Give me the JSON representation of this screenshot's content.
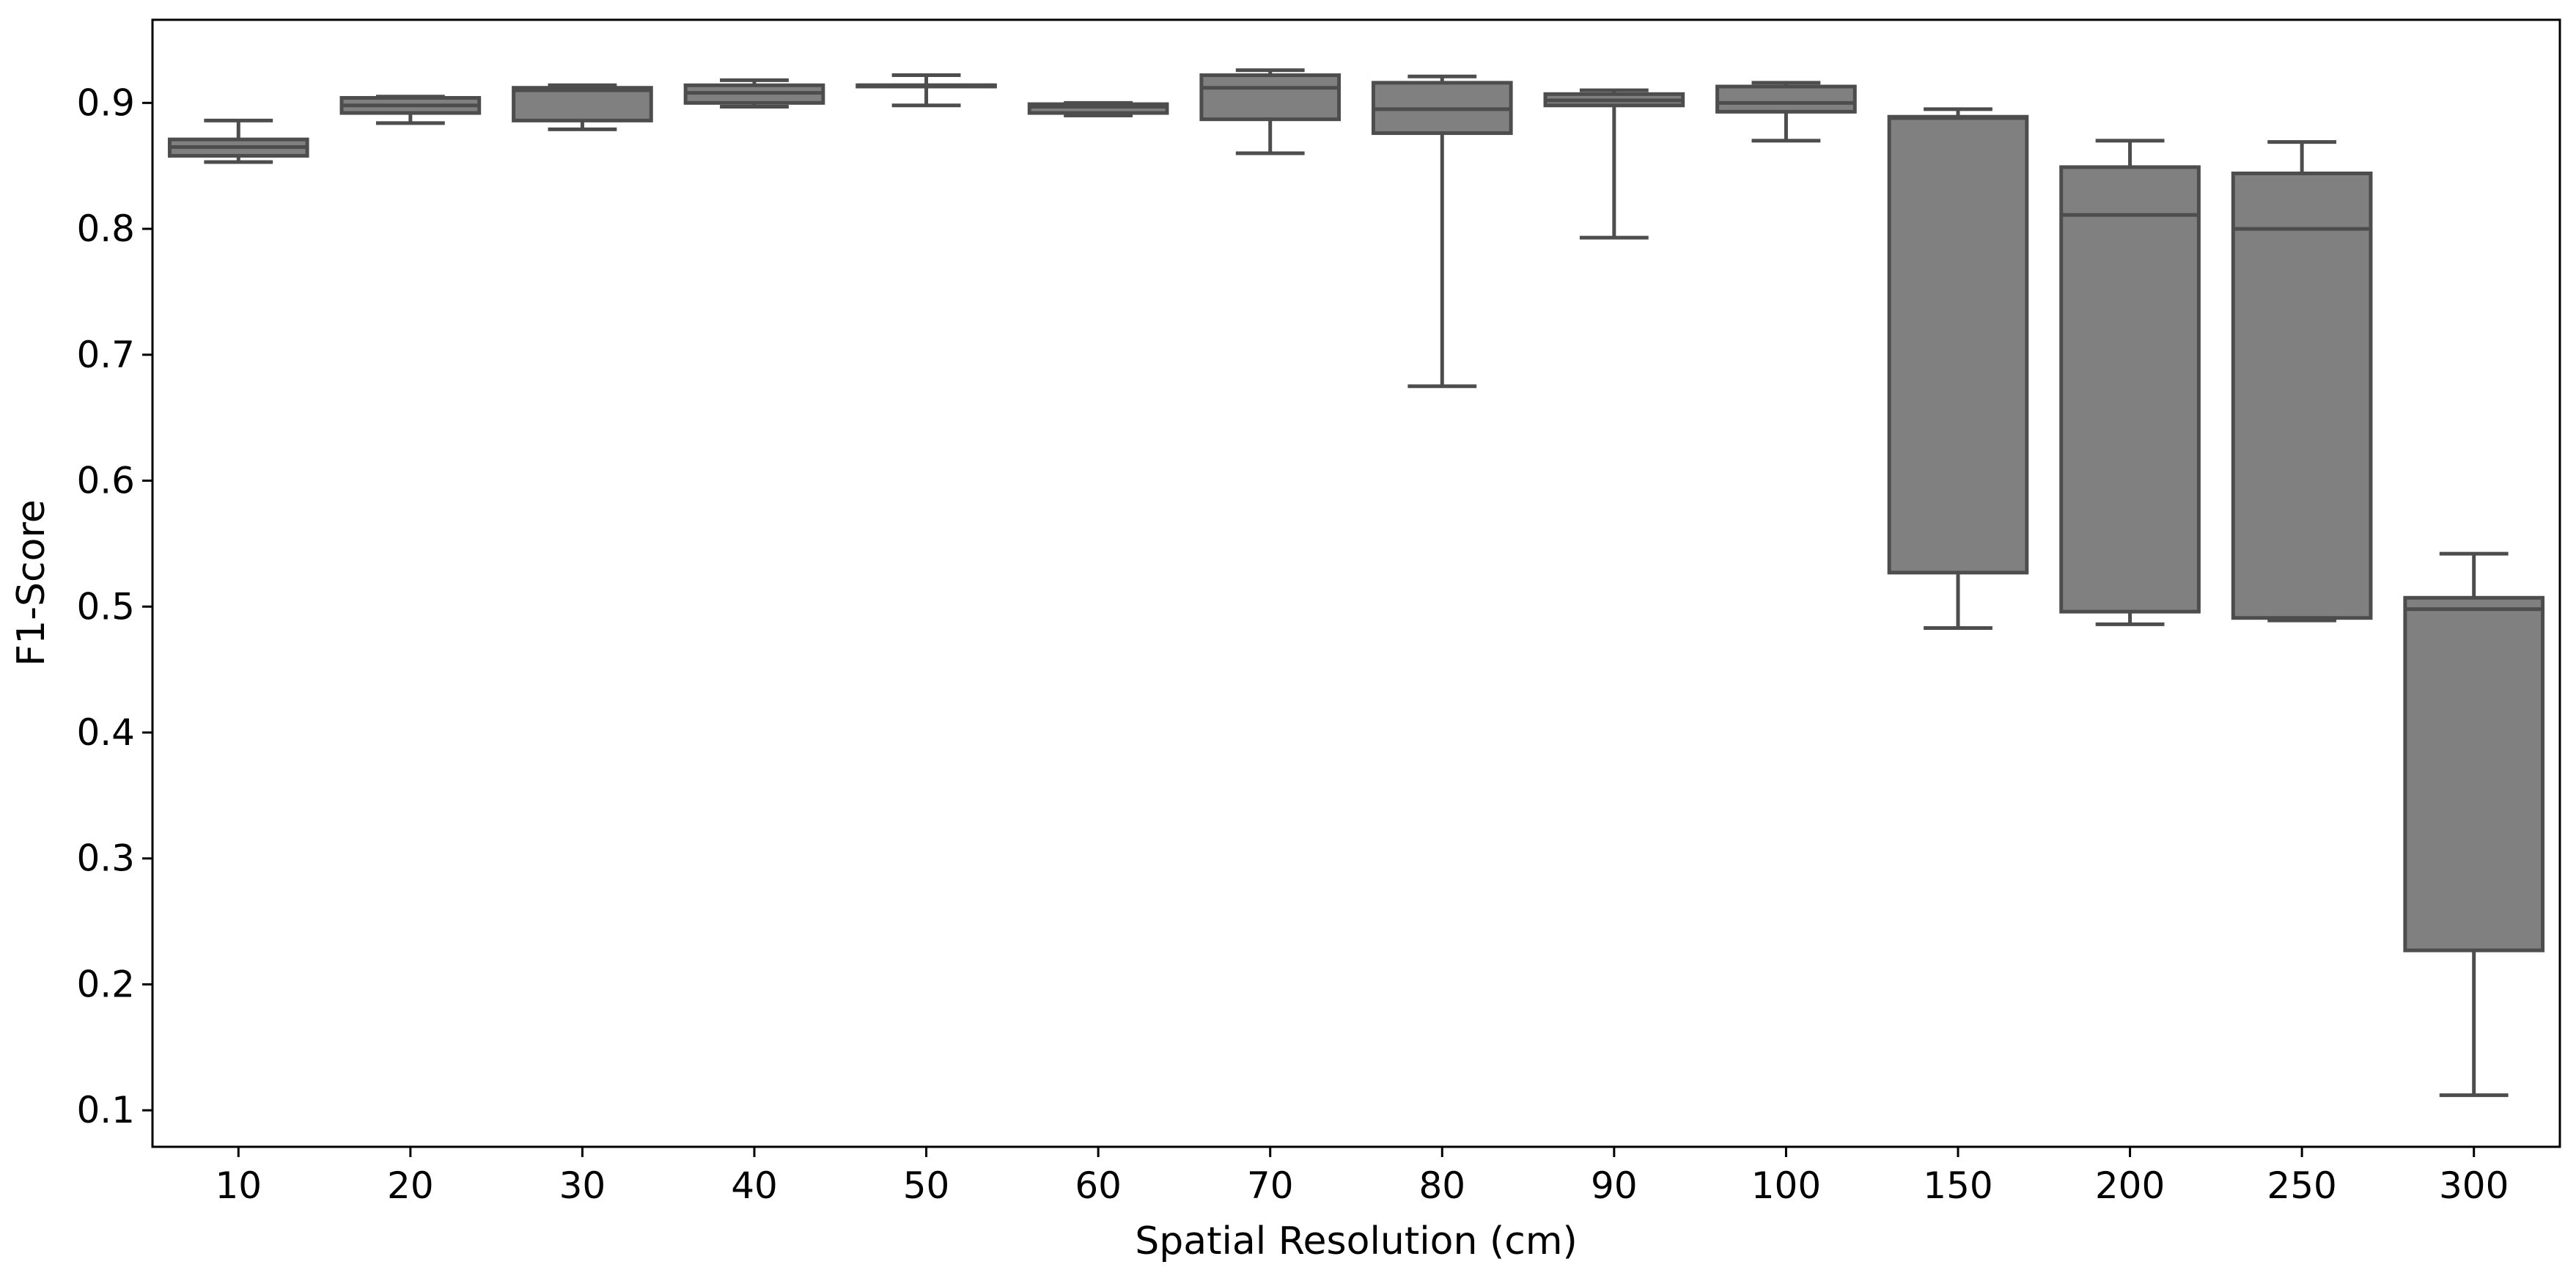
{
  "chart_data": {
    "type": "box",
    "title": "",
    "xlabel": "Spatial Resolution (cm)",
    "ylabel": "F1-Score",
    "categories": [
      "10",
      "20",
      "30",
      "40",
      "50",
      "60",
      "70",
      "80",
      "90",
      "100",
      "150",
      "200",
      "250",
      "300"
    ],
    "ylim": [
      0.071,
      0.966
    ],
    "yticks": [
      0.1,
      0.2,
      0.3,
      0.4,
      0.5,
      0.6,
      0.7,
      0.8,
      0.9
    ],
    "ytick_labels": [
      "0.1",
      "0.2",
      "0.3",
      "0.4",
      "0.5",
      "0.6",
      "0.7",
      "0.8",
      "0.9"
    ],
    "grid": false,
    "colors": {
      "box_fill": "#808080",
      "box_edge": "#4d4d4d"
    },
    "boxes": [
      {
        "whisker_low": 0.853,
        "q1": 0.858,
        "median": 0.865,
        "q3": 0.871,
        "whisker_high": 0.886
      },
      {
        "whisker_low": 0.884,
        "q1": 0.892,
        "median": 0.898,
        "q3": 0.904,
        "whisker_high": 0.905
      },
      {
        "whisker_low": 0.879,
        "q1": 0.886,
        "median": 0.91,
        "q3": 0.912,
        "whisker_high": 0.914
      },
      {
        "whisker_low": 0.897,
        "q1": 0.9,
        "median": 0.908,
        "q3": 0.914,
        "whisker_high": 0.918
      },
      {
        "whisker_low": 0.898,
        "q1": 0.913,
        "median": 0.914,
        "q3": 0.914,
        "whisker_high": 0.922
      },
      {
        "whisker_low": 0.89,
        "q1": 0.892,
        "median": 0.897,
        "q3": 0.899,
        "whisker_high": 0.9
      },
      {
        "whisker_low": 0.86,
        "q1": 0.887,
        "median": 0.912,
        "q3": 0.922,
        "whisker_high": 0.926
      },
      {
        "whisker_low": 0.675,
        "q1": 0.876,
        "median": 0.895,
        "q3": 0.916,
        "whisker_high": 0.921
      },
      {
        "whisker_low": 0.793,
        "q1": 0.898,
        "median": 0.902,
        "q3": 0.907,
        "whisker_high": 0.91
      },
      {
        "whisker_low": 0.87,
        "q1": 0.893,
        "median": 0.9,
        "q3": 0.913,
        "whisker_high": 0.916
      },
      {
        "whisker_low": 0.483,
        "q1": 0.527,
        "median": 0.888,
        "q3": 0.889,
        "whisker_high": 0.895
      },
      {
        "whisker_low": 0.486,
        "q1": 0.496,
        "median": 0.811,
        "q3": 0.849,
        "whisker_high": 0.87
      },
      {
        "whisker_low": 0.489,
        "q1": 0.491,
        "median": 0.8,
        "q3": 0.844,
        "whisker_high": 0.869
      },
      {
        "whisker_low": 0.112,
        "q1": 0.227,
        "median": 0.498,
        "q3": 0.507,
        "whisker_high": 0.542
      }
    ]
  }
}
